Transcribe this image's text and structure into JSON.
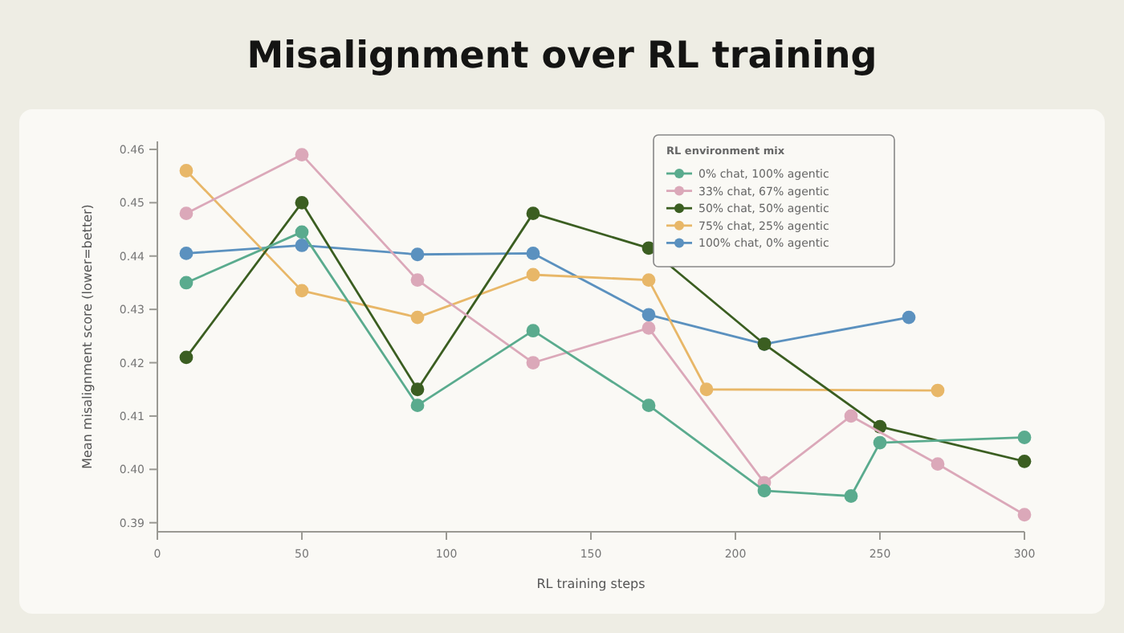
{
  "chart_data": {
    "type": "line",
    "title": "Misalignment over RL training",
    "xlabel": "RL training steps",
    "ylabel": "Mean misalignment score (lower=better)",
    "legend_title": "RL environment mix",
    "legend": "top right",
    "marker": "circle",
    "grid": false,
    "xlim": [
      0,
      300
    ],
    "xticks": [
      0,
      50,
      100,
      150,
      200,
      250,
      300
    ],
    "ylim": [
      0.3883,
      0.4615
    ],
    "yticks": [
      0.39,
      {
        "value": 0.4,
        "label": "0.40"
      },
      0.41,
      0.42,
      0.43,
      0.44,
      0.45,
      0.46
    ],
    "series": [
      {
        "name": "0% chat, 100% agentic",
        "color": "#5aab8e",
        "x": [
          10,
          50,
          90,
          130,
          170,
          210,
          240,
          250,
          300
        ],
        "values": [
          0.435,
          0.4445,
          0.412,
          0.426,
          0.412,
          0.396,
          0.395,
          0.405,
          0.406
        ]
      },
      {
        "name": "33% chat, 67% agentic",
        "color": "#dba8b9",
        "x": [
          10,
          50,
          90,
          130,
          170,
          210,
          240,
          270,
          300
        ],
        "values": [
          0.448,
          0.459,
          0.4355,
          0.42,
          0.4265,
          0.3975,
          0.41,
          0.401,
          0.3915
        ]
      },
      {
        "name": "50% chat, 50% agentic",
        "color": "#3b5e21",
        "x": [
          10,
          50,
          90,
          130,
          170,
          210,
          250,
          300
        ],
        "values": [
          0.421,
          0.45,
          0.415,
          0.448,
          0.4415,
          0.4235,
          0.408,
          0.4015
        ]
      },
      {
        "name": "75% chat, 25% agentic",
        "color": "#e8b768",
        "x": [
          10,
          50,
          90,
          130,
          170,
          190,
          270
        ],
        "values": [
          0.456,
          0.4335,
          0.4285,
          0.4365,
          0.4355,
          0.415,
          0.4148
        ]
      },
      {
        "name": "100% chat, 0% agentic",
        "color": "#5b91bf",
        "x": [
          10,
          50,
          90,
          130,
          170,
          210,
          260
        ],
        "values": [
          0.4405,
          0.442,
          0.4403,
          0.4405,
          0.429,
          0.4235,
          0.4285
        ]
      }
    ]
  }
}
